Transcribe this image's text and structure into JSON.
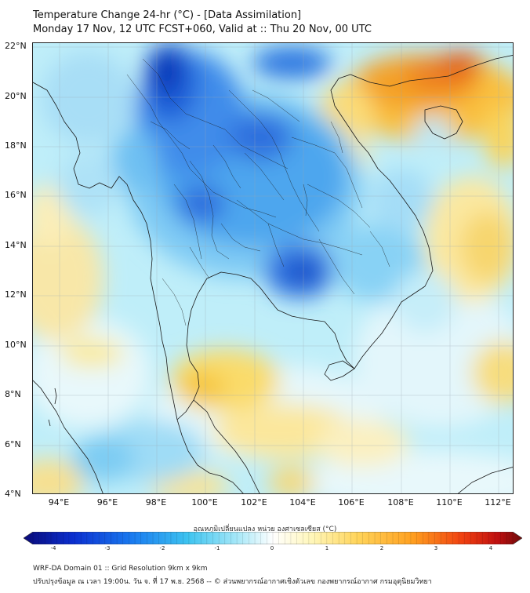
{
  "header": {
    "title_line1": "Temperature Change 24-hr (°C) - [Data Assimilation]",
    "title_line2": "Monday 17 Nov, 12 UTC FCST+060, Valid at :: Thu 20 Nov, 00 UTC"
  },
  "map": {
    "lat_labels": [
      "22°N",
      "20°N",
      "18°N",
      "16°N",
      "14°N",
      "12°N",
      "10°N",
      "8°N",
      "6°N",
      "4°N"
    ],
    "lon_labels": [
      "94°E",
      "96°E",
      "98°E",
      "100°E",
      "102°E",
      "104°E",
      "106°E",
      "108°E",
      "110°E",
      "112°E"
    ]
  },
  "colorbar": {
    "label": "อุณหภูมิเปลี่ยนแปลง หน่วย องศาเซลเซียส (°C)",
    "ticks": [
      "-4",
      "-3",
      "-2",
      "-1",
      "0",
      "1",
      "2",
      "3",
      "4"
    ],
    "colors": [
      "#0a0a78",
      "#0b2fd0",
      "#1a7cf0",
      "#3ec4f0",
      "#a8e8f8",
      "#ffffff",
      "#fff6b8",
      "#ffd45a",
      "#ffa020",
      "#f04010",
      "#c01010",
      "#6e0a0a"
    ]
  },
  "footer": {
    "line1": "WRF-DA Domain 01 :: Grid Resolution 9km x 9km",
    "line2": "ปรับปรุงข้อมูล ณ เวลา 19:00น. วัน จ. ที่ 17 พ.ย. 2568 -- © ส่วนพยากรณ์อากาศเชิงตัวเลข กองพยากรณ์อากาศ กรมอุตุนิยมวิทยา"
  }
}
